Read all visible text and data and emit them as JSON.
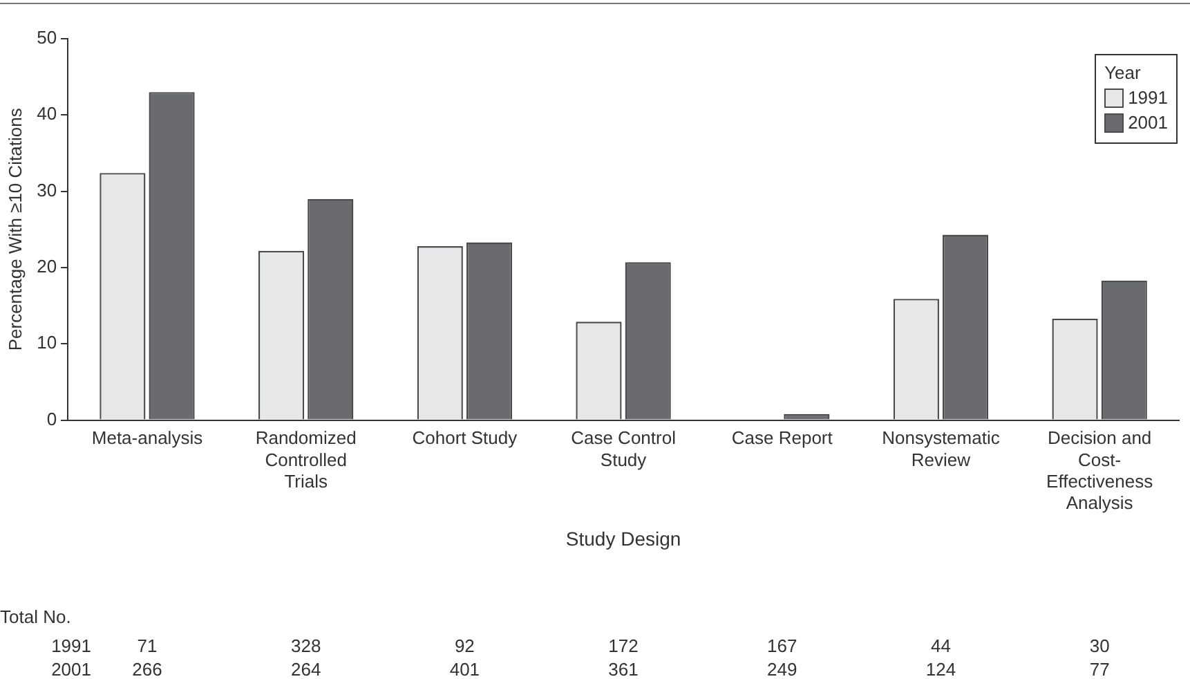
{
  "chart_data": {
    "type": "bar",
    "xlabel": "Study Design",
    "ylabel": "Percentage With ≥10 Citations",
    "legend_title": "Year",
    "legend": "top right",
    "grid": false,
    "categories": [
      "Meta-analysis",
      "Randomized Controlled Trials",
      "Cohort Study",
      "Case Control Study",
      "Case Report",
      "Nonsystematic Review",
      "Decision and Cost-Effectiveness Analysis"
    ],
    "series": [
      {
        "name": "1991",
        "color": "#e6e7e8",
        "values": [
          32.4,
          22.2,
          22.8,
          12.9,
          0,
          15.9,
          13.3
        ]
      },
      {
        "name": "2001",
        "color": "#6a6b6e",
        "values": [
          43.0,
          29.0,
          23.3,
          20.7,
          0.8,
          24.3,
          18.3
        ]
      }
    ],
    "ylim": [
      0,
      50
    ],
    "yticks": [
      0,
      10,
      20,
      30,
      40,
      50
    ],
    "annotations": [
      "Total No.",
      "1991",
      "71",
      "328",
      "92",
      "172",
      "167",
      "44",
      "30",
      "2001",
      "266",
      "264",
      "401",
      "361",
      "249",
      "124",
      "77"
    ]
  }
}
